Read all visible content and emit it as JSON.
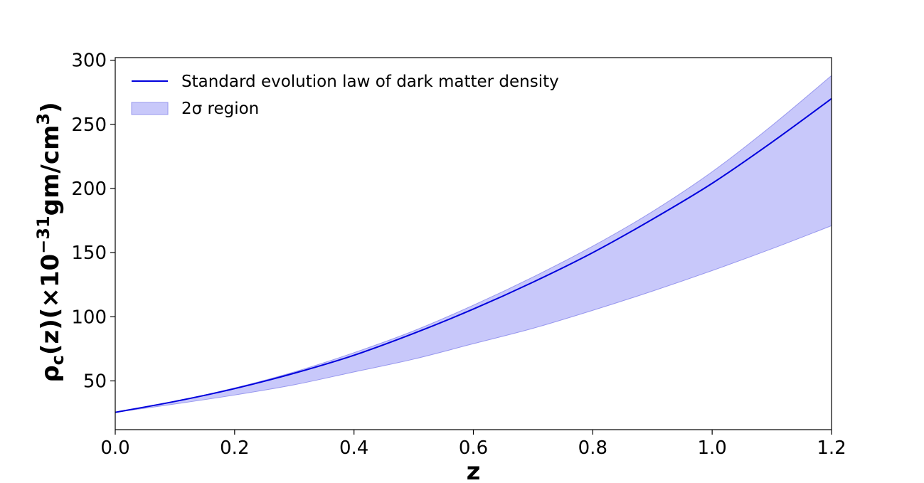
{
  "chart_data": {
    "type": "line",
    "xlabel": "z",
    "ylabel": {
      "base": "ρ",
      "sub": "c",
      "mid": "(z)(×10",
      "sup": "−31",
      "unit": "gm/cm",
      "unit_sup": "3",
      "close": ")"
    },
    "xlim": [
      0.0,
      1.2
    ],
    "ylim": [
      12,
      302
    ],
    "xticks": [
      0.0,
      0.2,
      0.4,
      0.6,
      0.8,
      1.0,
      1.2
    ],
    "xtick_labels": [
      "0.0",
      "0.2",
      "0.4",
      "0.6",
      "0.8",
      "1.0",
      "1.2"
    ],
    "yticks": [
      50,
      100,
      150,
      200,
      250,
      300
    ],
    "ytick_labels": [
      "50",
      "100",
      "150",
      "200",
      "250",
      "300"
    ],
    "grid": false,
    "legend_position": "top-left",
    "x": [
      0.0,
      0.1,
      0.2,
      0.3,
      0.4,
      0.5,
      0.6,
      0.7,
      0.8,
      0.9,
      1.0,
      1.1,
      1.2
    ],
    "series": [
      {
        "name": "Standard evolution law of dark matter density",
        "kind": "line",
        "color": "#0000dd",
        "values": [
          25.5,
          34,
          44,
          56,
          70,
          87,
          106,
          127,
          150,
          176,
          204,
          236,
          270
        ]
      },
      {
        "name": "2σ region",
        "kind": "band",
        "color": "#c8c8fa",
        "edge_color": "#9898ee",
        "upper": [
          25.5,
          34,
          44.5,
          57,
          72,
          89,
          109,
          131,
          155,
          182,
          213,
          249,
          288
        ],
        "lower": [
          25.5,
          32,
          39,
          47,
          57,
          67,
          79,
          91,
          105,
          120,
          136,
          153,
          171
        ]
      }
    ]
  }
}
